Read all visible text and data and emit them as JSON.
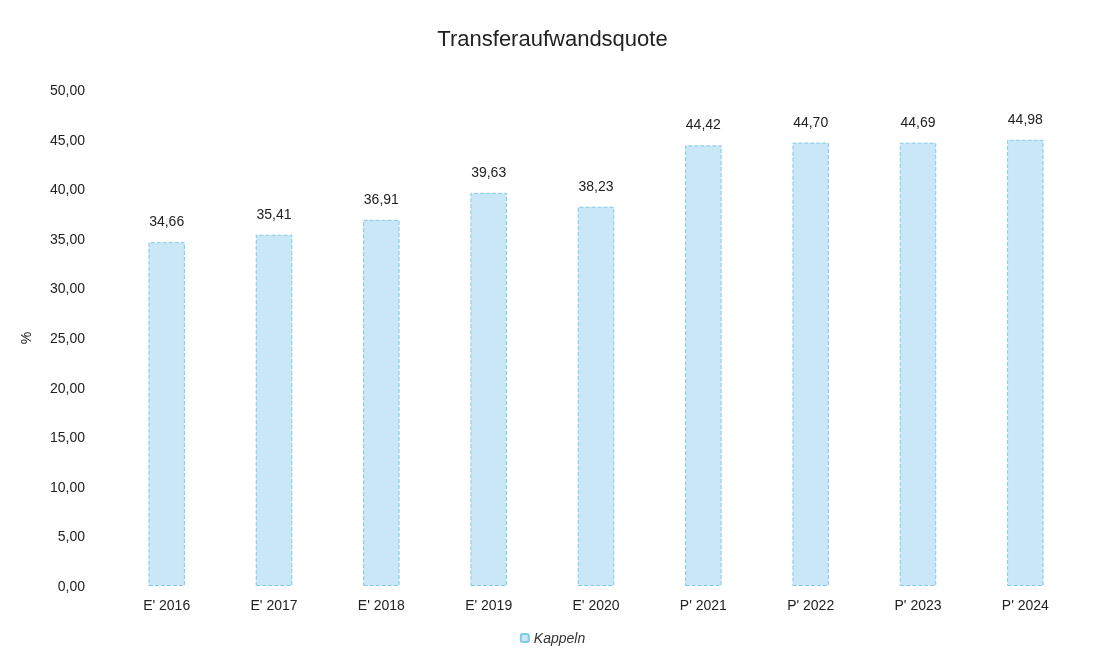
{
  "chart_data": {
    "type": "bar",
    "title": "Transferaufwandsquote",
    "ylabel": "%",
    "categories": [
      "E' 2016",
      "E' 2017",
      "E' 2018",
      "E' 2019",
      "E' 2020",
      "P' 2021",
      "P' 2022",
      "P' 2023",
      "P' 2024"
    ],
    "series": [
      {
        "name": "Kappeln",
        "color": "#c9e7f7",
        "values": [
          34.66,
          35.41,
          36.91,
          39.63,
          38.23,
          44.42,
          44.7,
          44.69,
          44.98
        ],
        "value_labels": [
          "34,66",
          "35,41",
          "36,91",
          "39,63",
          "38,23",
          "44,42",
          "44,70",
          "44,69",
          "44,98"
        ]
      }
    ],
    "ylim": [
      0,
      50
    ],
    "yticks": [
      {
        "value": 0,
        "label": "0,00"
      },
      {
        "value": 5,
        "label": "5,00"
      },
      {
        "value": 10,
        "label": "10,00"
      },
      {
        "value": 15,
        "label": "15,00"
      },
      {
        "value": 20,
        "label": "20,00"
      },
      {
        "value": 25,
        "label": "25,00"
      },
      {
        "value": 30,
        "label": "30,00"
      },
      {
        "value": 35,
        "label": "35,00"
      },
      {
        "value": 40,
        "label": "40,00"
      },
      {
        "value": 45,
        "label": "45,00"
      },
      {
        "value": 50,
        "label": "50,00"
      }
    ],
    "grid": false,
    "legend": "bottom"
  }
}
